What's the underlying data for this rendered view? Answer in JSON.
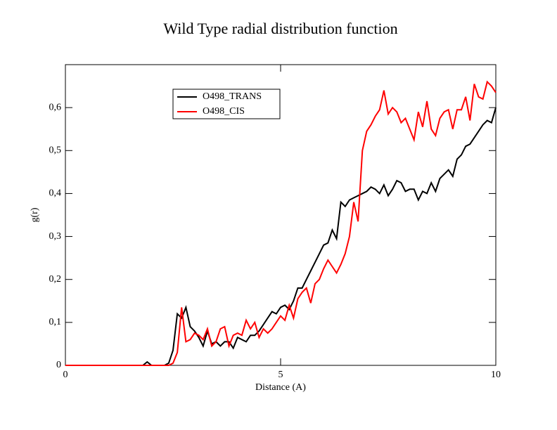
{
  "chart_data": {
    "type": "line",
    "title": "Wild Type radial distribution function",
    "x_label": "Distance (A)",
    "y_label": "g(r)",
    "x": [
      0,
      1.8,
      1.9,
      2.0,
      2.1,
      2.2,
      2.3,
      2.4,
      2.5,
      2.6,
      2.7,
      2.8,
      2.9,
      3.0,
      3.1,
      3.2,
      3.3,
      3.4,
      3.5,
      3.6,
      3.7,
      3.8,
      3.9,
      4.0,
      4.1,
      4.2,
      4.3,
      4.4,
      4.5,
      4.6,
      4.7,
      4.8,
      4.9,
      5.0,
      5.1,
      5.2,
      5.3,
      5.4,
      5.5,
      5.6,
      5.7,
      5.8,
      5.9,
      6.0,
      6.1,
      6.2,
      6.3,
      6.4,
      6.5,
      6.6,
      6.7,
      6.8,
      6.9,
      7.0,
      7.1,
      7.2,
      7.3,
      7.4,
      7.5,
      7.6,
      7.7,
      7.8,
      7.9,
      8.0,
      8.1,
      8.2,
      8.3,
      8.4,
      8.5,
      8.6,
      8.7,
      8.8,
      8.9,
      9.0,
      9.1,
      9.2,
      9.3,
      9.4,
      9.5,
      9.6,
      9.7,
      9.8,
      9.9,
      10.0
    ],
    "series": [
      {
        "name": "O498_TRANS",
        "color": "#000000",
        "values": [
          0,
          0,
          0.008,
          0,
          0,
          0,
          0,
          0.005,
          0.035,
          0.12,
          0.11,
          0.135,
          0.09,
          0.08,
          0.065,
          0.045,
          0.08,
          0.05,
          0.055,
          0.045,
          0.055,
          0.055,
          0.04,
          0.065,
          0.06,
          0.055,
          0.07,
          0.07,
          0.08,
          0.095,
          0.11,
          0.125,
          0.12,
          0.135,
          0.14,
          0.13,
          0.15,
          0.18,
          0.18,
          0.2,
          0.22,
          0.24,
          0.26,
          0.28,
          0.285,
          0.315,
          0.295,
          0.38,
          0.37,
          0.385,
          0.39,
          0.395,
          0.4,
          0.405,
          0.415,
          0.41,
          0.4,
          0.42,
          0.395,
          0.41,
          0.43,
          0.425,
          0.405,
          0.41,
          0.41,
          0.385,
          0.405,
          0.4,
          0.425,
          0.405,
          0.435,
          0.445,
          0.455,
          0.44,
          0.48,
          0.49,
          0.51,
          0.515,
          0.53,
          0.545,
          0.56,
          0.57,
          0.565,
          0.6
        ]
      },
      {
        "name": "O498_CIS",
        "color": "#ff0000",
        "values": [
          0,
          0,
          0,
          0,
          0,
          0,
          0,
          0,
          0.005,
          0.03,
          0.135,
          0.055,
          0.06,
          0.075,
          0.07,
          0.06,
          0.085,
          0.045,
          0.055,
          0.085,
          0.09,
          0.045,
          0.07,
          0.075,
          0.07,
          0.105,
          0.085,
          0.1,
          0.065,
          0.085,
          0.075,
          0.085,
          0.1,
          0.115,
          0.105,
          0.14,
          0.11,
          0.155,
          0.17,
          0.18,
          0.145,
          0.19,
          0.2,
          0.225,
          0.245,
          0.23,
          0.215,
          0.235,
          0.26,
          0.3,
          0.38,
          0.335,
          0.5,
          0.545,
          0.56,
          0.58,
          0.595,
          0.64,
          0.585,
          0.6,
          0.59,
          0.565,
          0.575,
          0.55,
          0.525,
          0.59,
          0.555,
          0.615,
          0.55,
          0.535,
          0.575,
          0.59,
          0.595,
          0.55,
          0.595,
          0.595,
          0.625,
          0.57,
          0.655,
          0.625,
          0.62,
          0.66,
          0.65,
          0.635
        ]
      }
    ],
    "xlim": [
      0,
      10
    ],
    "xticks": [
      0,
      5,
      10
    ],
    "ylim": [
      0,
      0.7
    ],
    "yticks": [
      0,
      {
        "value": 0.1,
        "label": "0,1"
      },
      {
        "value": 0.2,
        "label": "0,2"
      },
      {
        "value": 0.3,
        "label": "0,3"
      },
      {
        "value": 0.4,
        "label": "0,4"
      },
      {
        "value": 0.5,
        "label": "0,5"
      },
      {
        "value": 0.6,
        "label": "0,6"
      }
    ],
    "grid": false,
    "legend": "top-left"
  }
}
